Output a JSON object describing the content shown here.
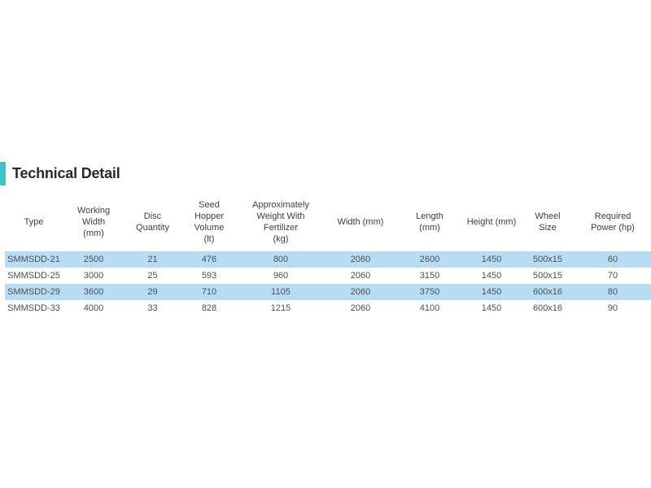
{
  "section": {
    "title": "Technical Detail",
    "accent_color": "#43c1ca"
  },
  "table": {
    "highlight_color": "#b7ddf4",
    "columns": [
      "Type",
      "Working\nWidth\n(mm)",
      "Disc\nQuantity",
      "Seed\nHopper\nVolume\n(lt)",
      "Approximately\nWeight With\nFertilizer\n(kg)",
      "Width (mm)",
      "Length\n(mm)",
      "Height (mm)",
      "Wheel\nSize",
      "Required\nPower (hp)"
    ],
    "rows": [
      {
        "highlighted": true,
        "cells": [
          "SMMSDD-21",
          "2500",
          "21",
          "476",
          "800",
          "2060",
          "2600",
          "1450",
          "500x15",
          "60"
        ]
      },
      {
        "highlighted": false,
        "cells": [
          "SMMSDD-25",
          "3000",
          "25",
          "593",
          "960",
          "2060",
          "3150",
          "1450",
          "500x15",
          "70"
        ]
      },
      {
        "highlighted": true,
        "cells": [
          "SMMSDD-29",
          "3600",
          "29",
          "710",
          "1105",
          "2060",
          "3750",
          "1450",
          "600x16",
          "80"
        ]
      },
      {
        "highlighted": false,
        "cells": [
          "SMMSDD-33",
          "4000",
          "33",
          "828",
          "1215",
          "2060",
          "4100",
          "1450",
          "600x16",
          "90"
        ]
      }
    ]
  }
}
